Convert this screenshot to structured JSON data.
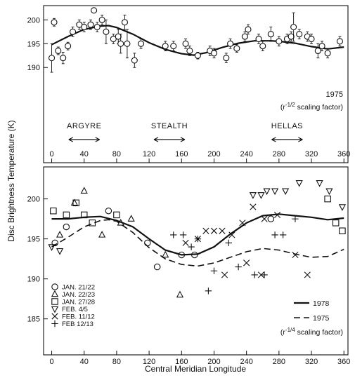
{
  "axis_label_y": "Disc Brightness Temperature (K)",
  "axis_label_x": "Central Meridian Longitude",
  "regions": [
    {
      "label": "ARGYRE",
      "center": 40
    },
    {
      "label": "STEALTH",
      "center": 145
    },
    {
      "label": "HELLAS",
      "center": 290
    }
  ],
  "chart_data": [
    {
      "type": "scatter",
      "panel": "top",
      "year_label": "1975",
      "scaling_note": [
        "(r",
        "-1/2",
        " scaling factor)"
      ],
      "xlim": [
        -10,
        365
      ],
      "ylim": [
        170,
        203
      ],
      "xticks": [
        0,
        40,
        80,
        120,
        160,
        200,
        240,
        280,
        320,
        360
      ],
      "yticks": [
        190,
        195,
        200
      ],
      "points": [
        {
          "x": 0,
          "y": 192,
          "err": 3
        },
        {
          "x": 3,
          "y": 199.5,
          "err": 0.8
        },
        {
          "x": 8,
          "y": 193.5,
          "err": 0.8
        },
        {
          "x": 14,
          "y": 192,
          "err": 1.2
        },
        {
          "x": 20,
          "y": 194.5,
          "err": 0.8
        },
        {
          "x": 26,
          "y": 197.5,
          "err": 1
        },
        {
          "x": 34,
          "y": 199,
          "err": 1
        },
        {
          "x": 40,
          "y": 198.5,
          "err": 1
        },
        {
          "x": 48,
          "y": 199,
          "err": 1
        },
        {
          "x": 52,
          "y": 202,
          "err": 0.5
        },
        {
          "x": 56,
          "y": 198.5,
          "err": 1
        },
        {
          "x": 62,
          "y": 200,
          "err": 1
        },
        {
          "x": 67,
          "y": 197.5,
          "err": 2.5
        },
        {
          "x": 76,
          "y": 196,
          "err": 1
        },
        {
          "x": 82,
          "y": 196.5,
          "err": 1.5
        },
        {
          "x": 85,
          "y": 195,
          "err": 2
        },
        {
          "x": 90,
          "y": 199.5,
          "err": 1.5
        },
        {
          "x": 93,
          "y": 195,
          "err": 3
        },
        {
          "x": 102,
          "y": 191.5,
          "err": 1.5
        },
        {
          "x": 110,
          "y": 195,
          "err": 1
        },
        {
          "x": 140,
          "y": 194.5,
          "err": 1
        },
        {
          "x": 150,
          "y": 194.5,
          "err": 1
        },
        {
          "x": 165,
          "y": 195,
          "err": 1
        },
        {
          "x": 170,
          "y": 193.5,
          "err": 1
        },
        {
          "x": 180,
          "y": 192.5,
          "err": 0.7
        },
        {
          "x": 195,
          "y": 193.5,
          "err": 1
        },
        {
          "x": 200,
          "y": 193,
          "err": 1
        },
        {
          "x": 215,
          "y": 192,
          "err": 1
        },
        {
          "x": 220,
          "y": 195,
          "err": 1
        },
        {
          "x": 228,
          "y": 194,
          "err": 0.8
        },
        {
          "x": 238,
          "y": 196.5,
          "err": 1
        },
        {
          "x": 242,
          "y": 198,
          "err": 1
        },
        {
          "x": 255,
          "y": 196,
          "err": 1
        },
        {
          "x": 260,
          "y": 194.5,
          "err": 1
        },
        {
          "x": 270,
          "y": 197,
          "err": 1.5
        },
        {
          "x": 280,
          "y": 195.5,
          "err": 1
        },
        {
          "x": 290,
          "y": 196,
          "err": 1
        },
        {
          "x": 295,
          "y": 196.5,
          "err": 1
        },
        {
          "x": 298,
          "y": 198.5,
          "err": 3
        },
        {
          "x": 305,
          "y": 197,
          "err": 1
        },
        {
          "x": 315,
          "y": 196.5,
          "err": 1
        },
        {
          "x": 320,
          "y": 196,
          "err": 1
        },
        {
          "x": 328,
          "y": 193.5,
          "err": 1.5
        },
        {
          "x": 333,
          "y": 194.5,
          "err": 1
        },
        {
          "x": 340,
          "y": 193,
          "err": 1
        },
        {
          "x": 355,
          "y": 195.5,
          "err": 1
        }
      ],
      "fit_curve": {
        "style": "solid",
        "x": [
          0,
          20,
          40,
          60,
          70,
          80,
          100,
          120,
          140,
          160,
          175,
          190,
          210,
          230,
          250,
          270,
          280,
          300,
          320,
          340,
          360
        ],
        "y": [
          194.8,
          196.5,
          198,
          198.7,
          198.8,
          198.4,
          197,
          195.2,
          193.8,
          192.9,
          192.6,
          193.1,
          194.2,
          195.1,
          195.6,
          195.6,
          195.5,
          195.1,
          194.4,
          193.9,
          194.3
        ]
      }
    },
    {
      "type": "scatter",
      "panel": "bottom",
      "scaling_note": [
        "(r",
        "-1/4",
        " scaling factor)"
      ],
      "xlim": [
        -10,
        365
      ],
      "ylim": [
        180.5,
        204
      ],
      "xticks": [
        0,
        40,
        80,
        120,
        160,
        200,
        240,
        280,
        320,
        360
      ],
      "yticks": [
        185,
        190,
        195,
        200
      ],
      "series": [
        {
          "name": "JAN. 21/22",
          "marker": "circle",
          "points": [
            [
              4,
              194.5
            ],
            [
              18,
              196.5
            ],
            [
              70,
              198.5
            ],
            [
              118,
              194.5
            ],
            [
              130,
              191.5
            ],
            [
              160,
              193
            ],
            [
              176,
              193
            ],
            [
              270,
              197.5
            ]
          ]
        },
        {
          "name": "JAN. 22/23",
          "marker": "triangle",
          "points": [
            [
              10,
              195.5
            ],
            [
              28,
              199.5
            ],
            [
              40,
              201
            ],
            [
              62,
              195.5
            ],
            [
              85,
              197
            ],
            [
              98,
              197.5
            ],
            [
              140,
              193
            ],
            [
              158,
              188
            ]
          ]
        },
        {
          "name": "JAN. 27/28",
          "marker": "square",
          "points": [
            [
              2,
              198.5
            ],
            [
              18,
              198
            ],
            [
              30,
              199.5
            ],
            [
              40,
              198
            ],
            [
              50,
              197
            ],
            [
              80,
              198
            ],
            [
              340,
              200
            ],
            [
              350,
              197
            ],
            [
              358,
              196
            ]
          ]
        },
        {
          "name": "FEB. 4/5",
          "marker": "triangle-down",
          "points": [
            [
              0,
              194
            ],
            [
              10,
              193.5
            ],
            [
              248,
              200.5
            ],
            [
              258,
              200.5
            ],
            [
              265,
              201
            ],
            [
              275,
              201
            ],
            [
              288,
              201
            ],
            [
              305,
              202
            ],
            [
              330,
              202
            ],
            [
              342,
              201
            ],
            [
              358,
              199
            ]
          ]
        },
        {
          "name": "FEB. 11/12",
          "marker": "x",
          "points": [
            [
              165,
              194.5
            ],
            [
              180,
              195
            ],
            [
              190,
              196
            ],
            [
              200,
              196
            ],
            [
              210,
              196
            ],
            [
              222,
              195.5
            ],
            [
              235,
              197
            ],
            [
              248,
              199
            ],
            [
              262,
              197.5
            ],
            [
              278,
              198
            ],
            [
              240,
              192
            ],
            [
              213,
              190.5
            ],
            [
              258,
              190.5
            ],
            [
              300,
              193
            ],
            [
              315,
              190.5
            ]
          ]
        },
        {
          "name": "FEB 12/13",
          "marker": "plus",
          "points": [
            [
              150,
              195.5
            ],
            [
              162,
              195.5
            ],
            [
              172,
              194
            ],
            [
              180,
              195
            ],
            [
              218,
              194.5
            ],
            [
              230,
              191.5
            ],
            [
              200,
              191
            ],
            [
              193,
              188.5
            ],
            [
              250,
              190.5
            ],
            [
              262,
              190.5
            ],
            [
              275,
              195.5
            ],
            [
              285,
              195.5
            ],
            [
              300,
              197.5
            ]
          ]
        }
      ],
      "curves": [
        {
          "name": "1978",
          "style": "solid",
          "x": [
            0,
            20,
            40,
            60,
            80,
            100,
            120,
            140,
            160,
            180,
            200,
            220,
            240,
            260,
            280,
            300,
            320,
            340,
            360
          ],
          "y": [
            197.5,
            197.5,
            197.7,
            197.8,
            197.3,
            196.5,
            195,
            193.6,
            193,
            193.1,
            194,
            195.6,
            197,
            197.9,
            198.1,
            197.9,
            197.7,
            197.4,
            197.6
          ]
        },
        {
          "name": "1975",
          "style": "dashed",
          "x": [
            0,
            20,
            40,
            60,
            70,
            80,
            100,
            120,
            140,
            160,
            180,
            200,
            220,
            240,
            260,
            280,
            300,
            320,
            340,
            360
          ],
          "y": [
            194,
            195.2,
            196.5,
            197.3,
            197.4,
            197.2,
            195.8,
            193.9,
            192.5,
            191.8,
            191.6,
            192,
            192.7,
            193.4,
            193.8,
            193.6,
            193.1,
            192.7,
            192.8,
            193.7
          ]
        }
      ]
    }
  ]
}
